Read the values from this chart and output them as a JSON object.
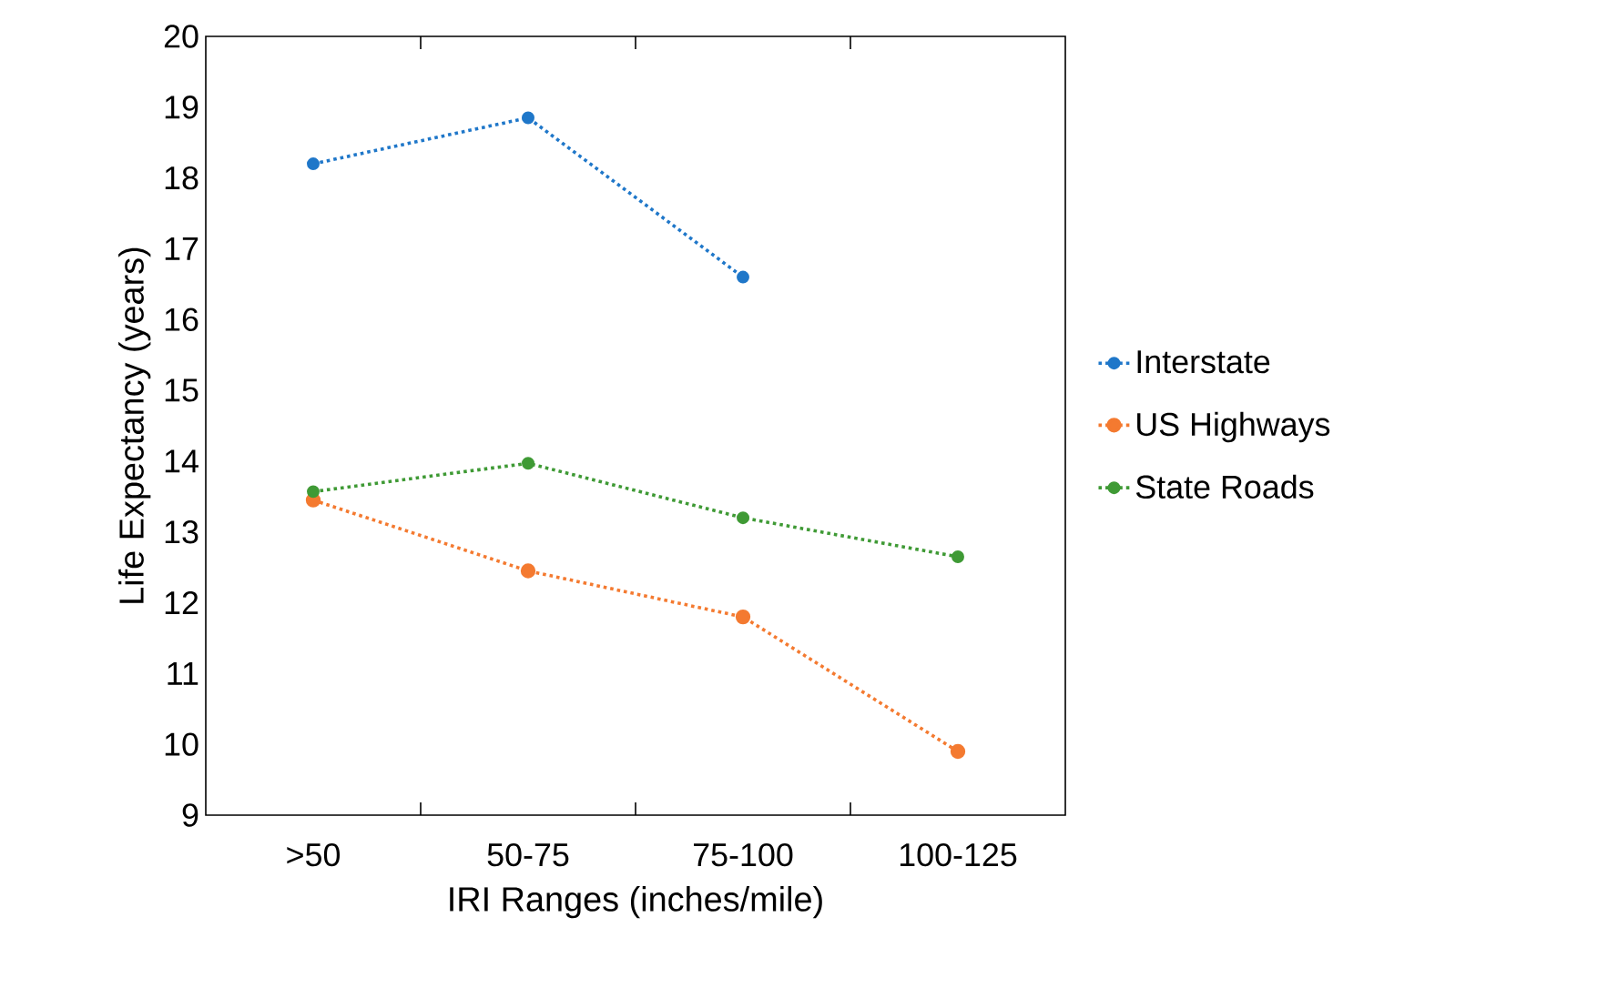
{
  "chart_data": {
    "type": "line",
    "xlabel": "IRI Ranges (inches/mile)",
    "ylabel": "Life Expectancy (years)",
    "categories": [
      ">50",
      "50-75",
      "75-100",
      "100-125"
    ],
    "series": [
      {
        "name": "Interstate",
        "color": "#1f77c9",
        "values": [
          18.2,
          18.85,
          16.6,
          null
        ]
      },
      {
        "name": "US Highways",
        "color": "#f47a30",
        "values": [
          13.45,
          12.45,
          11.8,
          9.9
        ]
      },
      {
        "name": "State Roads",
        "color": "#3f9a35",
        "values": [
          13.57,
          13.97,
          13.2,
          12.65
        ]
      }
    ],
    "ylim": [
      9,
      20
    ],
    "yticks": [
      9,
      10,
      11,
      12,
      13,
      14,
      15,
      16,
      17,
      18,
      19,
      20
    ],
    "grid": false,
    "legend": "right",
    "marker": "circle",
    "line_style": "dotted"
  }
}
